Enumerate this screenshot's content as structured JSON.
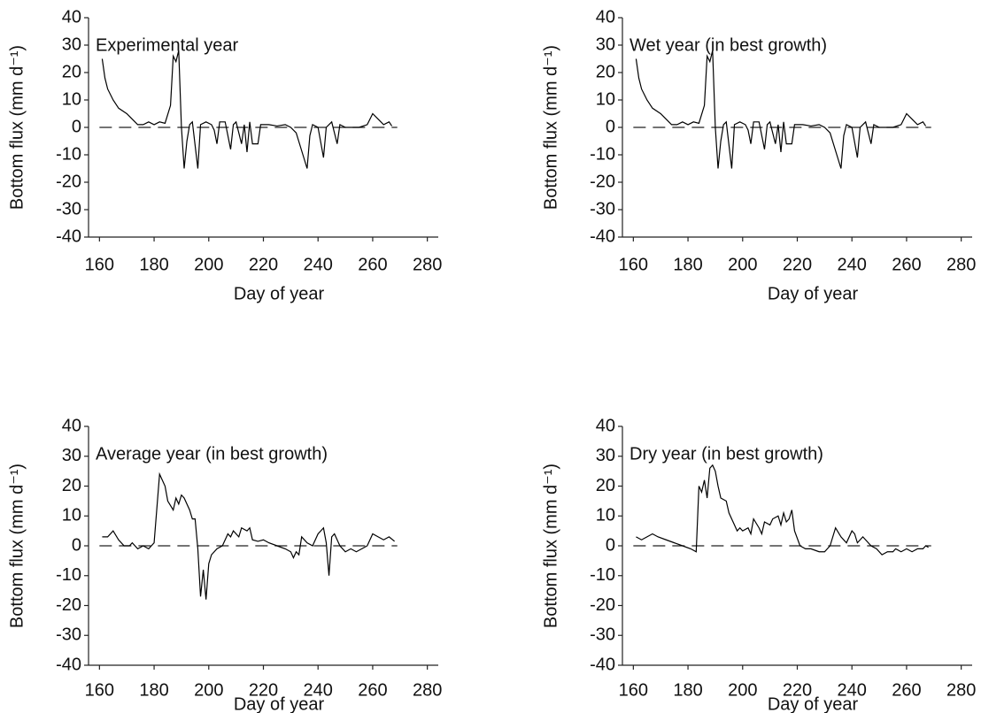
{
  "chart_data": [
    {
      "type": "line",
      "title": "Experimental year",
      "xlabel": "Day of year",
      "ylabel": "Bottom flux (mm d⁻¹)",
      "color": "#000000",
      "xlim": [
        156,
        284
      ],
      "ylim": [
        -40,
        40
      ],
      "xticks": [
        160,
        180,
        200,
        220,
        240,
        260,
        280
      ],
      "yticks": [
        -40,
        -30,
        -20,
        -10,
        0,
        10,
        20,
        30,
        40
      ],
      "reference_line": {
        "y": 0,
        "x": [
          160,
          269
        ]
      },
      "x": [
        161,
        162,
        163,
        165,
        167,
        170,
        172,
        174,
        176,
        178,
        180,
        182,
        184,
        186,
        187,
        188,
        189,
        190,
        191,
        192,
        193,
        194,
        196,
        197,
        199,
        201,
        202,
        203,
        204,
        206,
        208,
        209,
        210,
        212,
        213,
        214,
        215,
        216,
        218,
        219,
        222,
        225,
        228,
        230,
        232,
        236,
        237,
        238,
        240,
        242,
        243,
        245,
        247,
        248,
        250,
        252,
        255,
        258,
        260,
        262,
        264,
        266,
        267
      ],
      "values": [
        25,
        18,
        14,
        10,
        7,
        5,
        3,
        1,
        1,
        2,
        1,
        2,
        1.5,
        8,
        26,
        24,
        28,
        0,
        -15,
        -5,
        1,
        2,
        -15,
        1,
        2,
        1,
        -1,
        -6,
        2,
        2,
        -8,
        1,
        2,
        -6,
        1,
        -9,
        2,
        -6,
        -6,
        1,
        1,
        0.5,
        1,
        0,
        -2,
        -15,
        -3,
        1,
        0,
        -11,
        0,
        2,
        -6,
        1,
        0,
        0,
        0,
        1,
        5,
        3,
        1,
        2,
        0.5
      ]
    },
    {
      "type": "line",
      "title": "Wet year (in best growth)",
      "xlabel": "Day of year",
      "ylabel": "Bottom flux (mm d⁻¹)",
      "color": "#000000",
      "xlim": [
        156,
        284
      ],
      "ylim": [
        -40,
        40
      ],
      "xticks": [
        160,
        180,
        200,
        220,
        240,
        260,
        280
      ],
      "yticks": [
        -40,
        -30,
        -20,
        -10,
        0,
        10,
        20,
        30,
        40
      ],
      "reference_line": {
        "y": 0,
        "x": [
          160,
          269
        ]
      },
      "x": [
        161,
        162,
        163,
        165,
        167,
        170,
        172,
        174,
        176,
        178,
        180,
        182,
        184,
        186,
        187,
        188,
        189,
        190,
        191,
        192,
        193,
        194,
        196,
        197,
        199,
        201,
        202,
        203,
        204,
        206,
        208,
        209,
        210,
        212,
        213,
        214,
        215,
        216,
        218,
        219,
        222,
        225,
        228,
        230,
        232,
        236,
        237,
        238,
        240,
        242,
        243,
        245,
        247,
        248,
        250,
        252,
        255,
        258,
        260,
        262,
        264,
        266,
        267
      ],
      "values": [
        25,
        18,
        14,
        10,
        7,
        5,
        3,
        1,
        1,
        2,
        1,
        2,
        1.5,
        8,
        26,
        24,
        28,
        0,
        -15,
        -5,
        1,
        2,
        -15,
        1,
        2,
        1,
        -1,
        -6,
        2,
        2,
        -8,
        1,
        2,
        -6,
        1,
        -9,
        2,
        -6,
        -6,
        1,
        1,
        0.5,
        1,
        0,
        -2,
        -15,
        -3,
        1,
        0,
        -11,
        0,
        2,
        -6,
        1,
        0,
        0,
        0,
        1,
        5,
        3,
        1,
        2,
        0.5
      ]
    },
    {
      "type": "line",
      "title": "Average year (in best growth)",
      "xlabel": "Day of year",
      "ylabel": "Bottom flux (mm d⁻¹)",
      "color": "#000000",
      "xlim": [
        156,
        284
      ],
      "ylim": [
        -40,
        40
      ],
      "xticks": [
        160,
        180,
        200,
        220,
        240,
        260,
        280
      ],
      "yticks": [
        -40,
        -30,
        -20,
        -10,
        0,
        10,
        20,
        30,
        40
      ],
      "reference_line": {
        "y": 0,
        "x": [
          160,
          269
        ]
      },
      "x": [
        161,
        163,
        165,
        167,
        169,
        171,
        172,
        174,
        176,
        178,
        180,
        182,
        184,
        185,
        187,
        188,
        189,
        190,
        191,
        193,
        194,
        195,
        196,
        197,
        198,
        199,
        200,
        201,
        203,
        205,
        207,
        208,
        209,
        211,
        212,
        214,
        215,
        216,
        218,
        220,
        222,
        225,
        228,
        230,
        231,
        232,
        233,
        234,
        236,
        238,
        240,
        241,
        242,
        243,
        244,
        245,
        246,
        248,
        250,
        252,
        254,
        256,
        258,
        260,
        262,
        264,
        266,
        268
      ],
      "values": [
        3,
        3,
        5,
        2,
        0,
        0,
        1,
        -1,
        0,
        -1,
        1,
        24,
        20,
        15,
        12,
        16,
        14,
        17,
        16,
        12,
        9,
        9,
        -1,
        -17,
        -8,
        -18,
        -6,
        -3,
        -1,
        0,
        4,
        3,
        5,
        3,
        6,
        5,
        6,
        2,
        1.5,
        2,
        1,
        0,
        -1,
        -2,
        -4,
        -2,
        -3,
        3,
        1,
        0,
        4,
        5,
        6,
        1,
        -10,
        3,
        4,
        0,
        -2,
        -1,
        -2,
        -1,
        0,
        4,
        3,
        2,
        3,
        1.5
      ]
    },
    {
      "type": "line",
      "title": "Dry year (in best growth)",
      "xlabel": "Day of year",
      "ylabel": "Bottom flux (mm d⁻¹)",
      "color": "#000000",
      "xlim": [
        156,
        284
      ],
      "ylim": [
        -40,
        40
      ],
      "xticks": [
        160,
        180,
        200,
        220,
        240,
        260,
        280
      ],
      "yticks": [
        -40,
        -30,
        -20,
        -10,
        0,
        10,
        20,
        30,
        40
      ],
      "reference_line": {
        "y": 0,
        "x": [
          160,
          269
        ]
      },
      "x": [
        161,
        163,
        165,
        167,
        169,
        172,
        175,
        178,
        181,
        183,
        184,
        185,
        186,
        187,
        188,
        189,
        190,
        191,
        192,
        194,
        195,
        196,
        198,
        199,
        200,
        202,
        203,
        204,
        206,
        207,
        208,
        210,
        211,
        213,
        214,
        215,
        216,
        217,
        218,
        219,
        221,
        223,
        225,
        228,
        230,
        232,
        234,
        236,
        238,
        240,
        241,
        242,
        244,
        245,
        247,
        249,
        251,
        253,
        255,
        256,
        258,
        260,
        262,
        264,
        266,
        267,
        268
      ],
      "values": [
        3,
        2,
        3,
        4,
        3,
        2,
        1,
        0,
        -1,
        -2,
        20,
        18,
        22,
        16,
        26,
        27,
        25,
        20,
        16,
        15,
        11,
        9,
        5,
        6,
        5,
        6,
        4,
        9,
        6,
        4,
        8,
        7,
        9,
        10,
        7,
        11,
        8,
        9,
        12,
        5,
        0,
        -1,
        -1,
        -2,
        -2,
        0,
        6,
        3,
        1,
        5,
        4,
        1,
        3,
        2,
        0,
        -1,
        -3,
        -2,
        -2,
        -1,
        -2,
        -1,
        -2,
        -1,
        -1,
        0,
        -0.5
      ]
    }
  ]
}
